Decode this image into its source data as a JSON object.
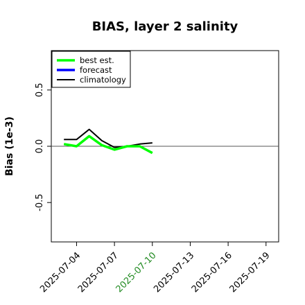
{
  "chart_data": {
    "type": "line",
    "title": "BIAS, layer 2 salinity",
    "ylabel": "Bias (1e-3)",
    "xlabel": "",
    "ylim": [
      -0.85,
      0.85
    ],
    "xlim": [
      "2025-07-02",
      "2025-07-20"
    ],
    "yticks": [
      -0.5,
      0.0,
      0.5
    ],
    "ytick_labels": [
      "-0.5",
      "0.0",
      "0.5"
    ],
    "xticks": [
      "2025-07-04",
      "2025-07-07",
      "2025-07-10",
      "2025-07-13",
      "2025-07-16",
      "2025-07-19"
    ],
    "highlighted_xtick": "2025-07-10",
    "highlight_color": "#228B22",
    "reference_line": {
      "y": 0.0,
      "x_range": [
        "2025-07-02",
        "2025-07-20"
      ],
      "color": "#555555"
    },
    "legend": {
      "placement": "top-left"
    },
    "series": [
      {
        "name": "best est.",
        "color": "#00ff00",
        "x": [
          "2025-07-03",
          "2025-07-04",
          "2025-07-05",
          "2025-07-06",
          "2025-07-07",
          "2025-07-08",
          "2025-07-09",
          "2025-07-10"
        ],
        "values": [
          0.02,
          0.0,
          0.09,
          0.01,
          -0.03,
          0.0,
          0.0,
          -0.06
        ]
      },
      {
        "name": "forecast",
        "color": "#0000ff",
        "x": [],
        "values": []
      },
      {
        "name": "climatology",
        "color": "#000000",
        "x": [
          "2025-07-03",
          "2025-07-04",
          "2025-07-05",
          "2025-07-06",
          "2025-07-07",
          "2025-07-08",
          "2025-07-09",
          "2025-07-10"
        ],
        "values": [
          0.06,
          0.06,
          0.15,
          0.05,
          -0.01,
          0.0,
          0.02,
          0.03
        ]
      }
    ]
  }
}
